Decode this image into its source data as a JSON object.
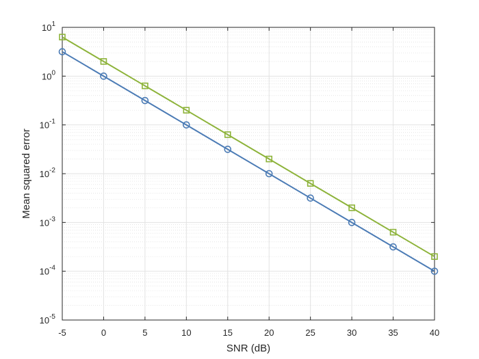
{
  "chart_data": {
    "type": "line",
    "title": "",
    "xlabel": "SNR (dB)",
    "ylabel": "Mean squared error",
    "xlim": [
      -5,
      40
    ],
    "ylim": [
      1e-05,
      10
    ],
    "yscale": "log",
    "grid": true,
    "minor_grid": true,
    "legend": null,
    "x": [
      -5,
      0,
      5,
      10,
      15,
      20,
      25,
      30,
      35,
      40
    ],
    "x_tick_labels": [
      "-5",
      "0",
      "5",
      "10",
      "15",
      "20",
      "25",
      "30",
      "35",
      "40"
    ],
    "y_tick_labels": [
      {
        "base": "10",
        "exp": "-5"
      },
      {
        "base": "10",
        "exp": "-4"
      },
      {
        "base": "10",
        "exp": "-3"
      },
      {
        "base": "10",
        "exp": "-2"
      },
      {
        "base": "10",
        "exp": "-1"
      },
      {
        "base": "10",
        "exp": "0"
      },
      {
        "base": "10",
        "exp": "1"
      }
    ],
    "series": [
      {
        "color": "#4B7BB5",
        "marker": "circle",
        "values": [
          3.16,
          1.0,
          0.316,
          0.1,
          0.0316,
          0.01,
          0.00316,
          0.001,
          0.000316,
          0.0001
        ]
      },
      {
        "color": "#8DB33A",
        "marker": "square",
        "values": [
          6.32,
          2.0,
          0.632,
          0.2,
          0.0632,
          0.02,
          0.00632,
          0.002,
          0.000632,
          0.0002
        ]
      }
    ]
  }
}
